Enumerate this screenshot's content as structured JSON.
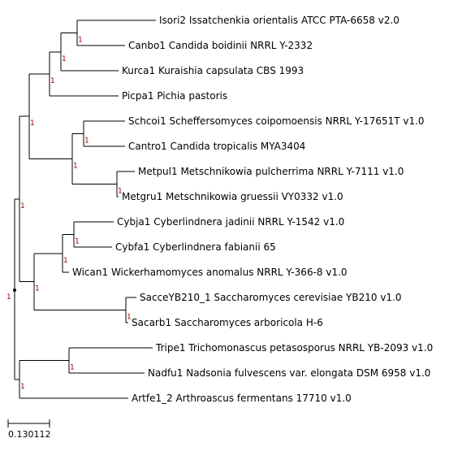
{
  "tree": {
    "support_color": "#a00000",
    "leaves": [
      {
        "id": "isori2",
        "label": "Isori2 Issatchenkia orientalis ATCC PTA-6658 v2.0"
      },
      {
        "id": "canbo1",
        "label": "Canbo1 Candida boidinii NRRL Y-2332"
      },
      {
        "id": "kurca1",
        "label": "Kurca1 Kuraishia capsulata CBS 1993"
      },
      {
        "id": "picpa1",
        "label": "Picpa1 Pichia pastoris"
      },
      {
        "id": "schcoi1",
        "label": "Schcoi1 Scheffersomyces coipomoensis NRRL Y-17651T v1.0"
      },
      {
        "id": "cantro1",
        "label": "Cantro1 Candida tropicalis MYA3404"
      },
      {
        "id": "metpul1",
        "label": "Metpul1 Metschnikowia pulcherrima NRRL Y-7111 v1.0"
      },
      {
        "id": "metgru1",
        "label": "Metgru1 Metschnikowia gruessii VY0332 v1.0"
      },
      {
        "id": "cybja1",
        "label": "Cybja1 Cyberlindnera jadinii NRRL Y-1542 v1.0"
      },
      {
        "id": "cybfa1",
        "label": "Cybfa1 Cyberlindnera fabianii 65"
      },
      {
        "id": "wican1",
        "label": "Wican1 Wickerhamomyces anomalus NRRL Y-366-8 v1.0"
      },
      {
        "id": "saccey",
        "label": "SacceYB210_1 Saccharomyces cerevisiae YB210 v1.0"
      },
      {
        "id": "sacarb1",
        "label": "Sacarb1 Saccharomyces arboricola H-6"
      },
      {
        "id": "tripe1",
        "label": "Tripe1 Trichomonascus petasosporus NRRL YB-2093 v1.0"
      },
      {
        "id": "nadfu1",
        "label": "Nadfu1 Nadsonia fulvescens var. elongata DSM 6958 v1.0"
      },
      {
        "id": "artfe1",
        "label": "Artfe1_2 Arthroascus fermentans 17710 v1.0"
      }
    ],
    "support_value": "1",
    "scale_bar": {
      "label": "0.130112"
    }
  }
}
